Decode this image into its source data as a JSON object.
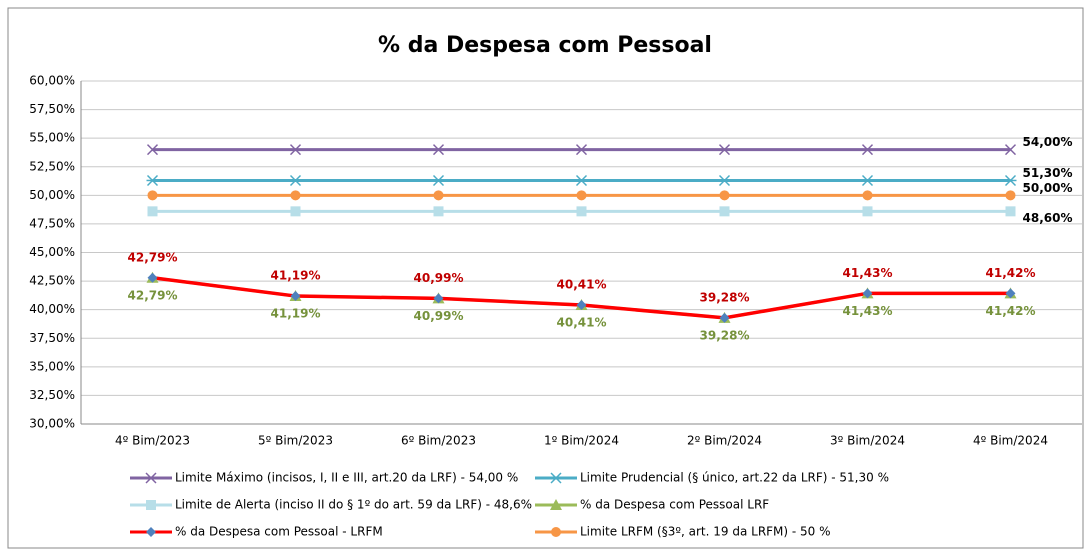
{
  "chart_data": {
    "type": "line",
    "title": "% da Despesa com Pessoal",
    "categories": [
      "4º Bim/2023",
      "5º Bim/2023",
      "6º Bim/2023",
      "1º Bim/2024",
      "2º Bim/2024",
      "3º Bim/2024",
      "4º Bim/2024"
    ],
    "ylim": [
      30,
      60
    ],
    "yticks": [
      {
        "value": 30,
        "label": "30,00%"
      },
      {
        "value": 32.5,
        "label": "32,50%"
      },
      {
        "value": 35,
        "label": "35,00%"
      },
      {
        "value": 37.5,
        "label": "37,50%"
      },
      {
        "value": 40,
        "label": "40,00%"
      },
      {
        "value": 42.5,
        "label": "42,50%"
      },
      {
        "value": 45,
        "label": "45,00%"
      },
      {
        "value": 47.5,
        "label": "47,50%"
      },
      {
        "value": 50,
        "label": "50,00%"
      },
      {
        "value": 52.5,
        "label": "52,50%"
      },
      {
        "value": 55,
        "label": "55,00%"
      },
      {
        "value": 57.5,
        "label": "57,50%"
      },
      {
        "value": 60,
        "label": "60,00%"
      }
    ],
    "grid": true,
    "legend": "bottom",
    "series": [
      {
        "name": "Limite Máximo (incisos, I, II e III, art.20 da LRF)  -  54,00 %",
        "color": "#8064A2",
        "marker": "x",
        "marker_color": "#8064A2",
        "label_color": "#000000",
        "label_position": "right",
        "values": [
          54,
          54,
          54,
          54,
          54,
          54,
          54
        ],
        "value_labels": [
          null,
          null,
          null,
          null,
          null,
          null,
          "54,00%"
        ]
      },
      {
        "name": "Limite Prudencial (§ único, art.22 da LRF)  -  51,30 %",
        "color": "#4BACC6",
        "marker": "asterisk",
        "marker_color": "#4BACC6",
        "label_color": "#000000",
        "label_position": "right",
        "values": [
          51.3,
          51.3,
          51.3,
          51.3,
          51.3,
          51.3,
          51.3
        ],
        "value_labels": [
          null,
          null,
          null,
          null,
          null,
          null,
          "51,30%"
        ]
      },
      {
        "name": "Limite de Alerta (inciso II do § 1º do art. 59 da LRF) - 48,6%",
        "color": "#B7DEE8",
        "marker": "square",
        "marker_color": "#B7DEE8",
        "label_color": "#000000",
        "label_position": "right",
        "values": [
          48.6,
          48.6,
          48.6,
          48.6,
          48.6,
          48.6,
          48.6
        ],
        "value_labels": [
          null,
          null,
          null,
          null,
          null,
          null,
          "48,60%"
        ]
      },
      {
        "name": "% da Despesa com Pessoal LRF",
        "color": "#9BBB59",
        "marker": "triangle",
        "marker_color": "#9BBB59",
        "label_color": "#76923C",
        "label_position": "below",
        "values": [
          42.79,
          41.19,
          40.99,
          40.41,
          39.28,
          41.43,
          41.42
        ],
        "value_labels": [
          "42,79%",
          "41,19%",
          "40,99%",
          "40,41%",
          "39,28%",
          "41,43%",
          "41,42%"
        ]
      },
      {
        "name": "% da Despesa com Pessoal - LRFM",
        "color": "#FF0000",
        "marker": "diamond",
        "marker_color": "#4F81BD",
        "label_color": "#C00000",
        "label_position": "above",
        "values": [
          42.79,
          41.19,
          40.99,
          40.41,
          39.28,
          41.43,
          41.42
        ],
        "value_labels": [
          "42,79%",
          "41,19%",
          "40,99%",
          "40,41%",
          "39,28%",
          "41,43%",
          "41,42%"
        ]
      },
      {
        "name": "Limite LRFM (§3º, art. 19 da LRFM)  -  50 %",
        "color": "#F79646",
        "marker": "circle",
        "marker_color": "#F79646",
        "label_color": "#000000",
        "label_position": "right",
        "values": [
          50,
          50,
          50,
          50,
          50,
          50,
          50
        ],
        "value_labels": [
          null,
          null,
          null,
          null,
          null,
          null,
          "50,00%"
        ]
      }
    ]
  }
}
